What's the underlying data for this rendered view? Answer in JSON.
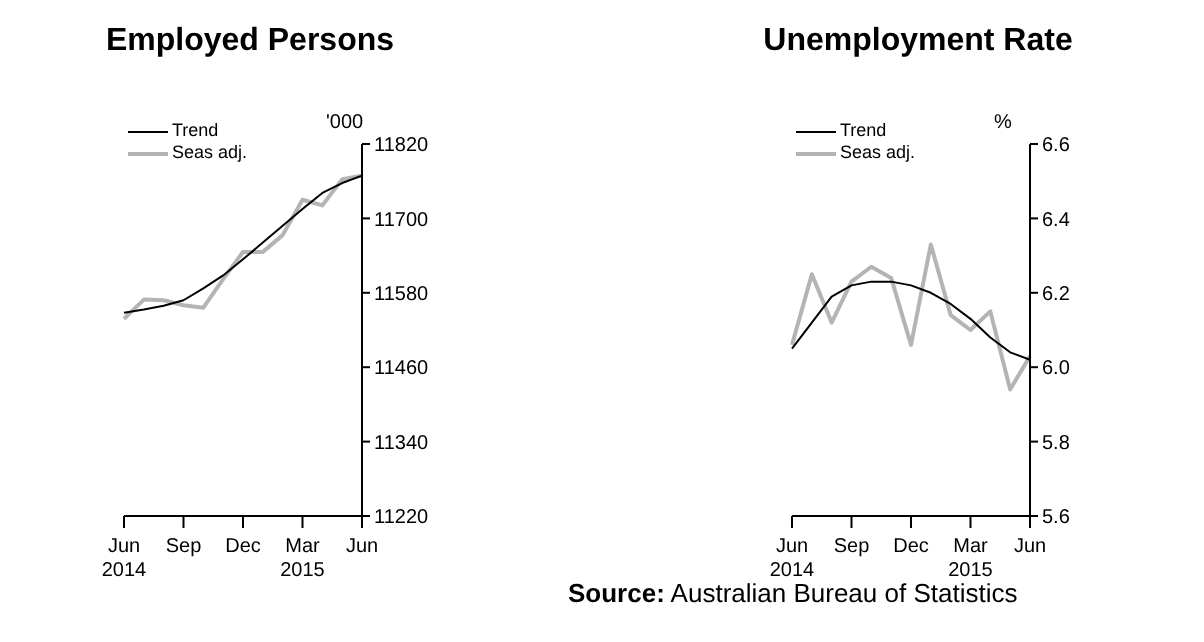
{
  "chart_data": [
    {
      "type": "line",
      "title": "Employed Persons",
      "ylabel": "'000",
      "categories": [
        "Jun\n2014",
        null,
        null,
        "Sep",
        null,
        null,
        "Dec",
        null,
        null,
        "Mar\n2015",
        null,
        null,
        "Jun"
      ],
      "series": [
        {
          "name": "Trend",
          "color": "#000000",
          "values": [
            11548,
            11553,
            11559,
            11568,
            11587,
            11608,
            11634,
            11661,
            11688,
            11715,
            11741,
            11757,
            11769
          ]
        },
        {
          "name": "Seas adj.",
          "color": "#b4b4b4",
          "values": [
            11538,
            11569,
            11568,
            11560,
            11556,
            11602,
            11646,
            11646,
            11673,
            11730,
            11721,
            11763,
            11769
          ]
        }
      ],
      "ylim": [
        11220,
        11820
      ],
      "yticks": [
        11220,
        11340,
        11460,
        11580,
        11700,
        11820
      ],
      "grid": false,
      "legend": "top left"
    },
    {
      "type": "line",
      "title": "Unemployment Rate",
      "ylabel": "%",
      "categories": [
        "Jun\n2014",
        null,
        null,
        "Sep",
        null,
        null,
        "Dec",
        null,
        null,
        "Mar\n2015",
        null,
        null,
        "Jun"
      ],
      "series": [
        {
          "name": "Trend",
          "color": "#000000",
          "values": [
            6.05,
            6.12,
            6.19,
            6.22,
            6.23,
            6.23,
            6.22,
            6.2,
            6.17,
            6.13,
            6.08,
            6.04,
            6.02
          ]
        },
        {
          "name": "Seas adj.",
          "color": "#b4b4b4",
          "values": [
            6.06,
            6.25,
            6.12,
            6.23,
            6.27,
            6.24,
            6.06,
            6.33,
            6.14,
            6.1,
            6.15,
            5.94,
            6.03
          ]
        }
      ],
      "ylim": [
        5.6,
        6.6
      ],
      "yticks": [
        5.6,
        5.8,
        {
          "value": 6.0,
          "label": "6.0"
        },
        6.2,
        6.4,
        6.6
      ],
      "grid": false,
      "legend": "top left",
      "annotations": [
        "Source: Australian Bureau of Statistics"
      ]
    }
  ]
}
